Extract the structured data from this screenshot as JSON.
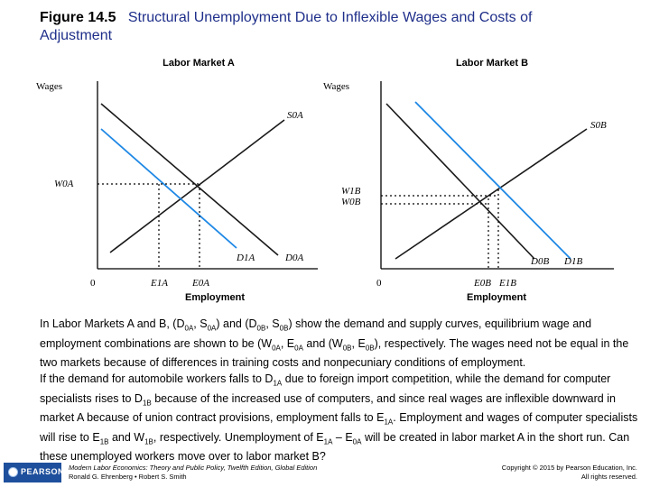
{
  "title": {
    "figure": "Figure 14.5",
    "text_line1": "Structural Unemployment Due to Inflexible Wages and Costs of",
    "text_line2": "Adjustment"
  },
  "graphs": {
    "market_a": {
      "heading": "Labor Market A",
      "y_axis": "Wages",
      "x_axis": "Employment",
      "origin": "0",
      "supply": "S0A",
      "demand0": "D0A",
      "demand1": "D1A",
      "wage": "W0A",
      "emp0": "E0A",
      "emp1": "E1A"
    },
    "market_b": {
      "heading": "Labor Market B",
      "y_axis": "Wages",
      "x_axis": "Employment",
      "origin": "0",
      "supply": "S0B",
      "demand0": "D0B",
      "demand1": "D1B",
      "wage1": "W1B",
      "wage0": "W0B",
      "emp0": "E0B",
      "emp1": "E1B"
    },
    "colors": {
      "original_curves": "#1a1a1a",
      "shifted_curves": "#1e88e5"
    }
  },
  "body": {
    "p1": {
      "s1": "In Labor Markets A and B, (D",
      "sub1": "0A",
      "s2": ", S",
      "sub2": "0A",
      "s3": ") and (D",
      "sub3": "0B",
      "s4": ", S",
      "sub4": "0B",
      "s5": ") show the demand and supply curves, equilibrium wage and employment combinations are shown to be (W",
      "sub5": "0A",
      "s6": ", E",
      "sub6": "0A",
      "s7": " and (W",
      "sub7": "0B",
      "s8": ", E",
      "sub8": "0B",
      "s9": "), respectively. The wages need not be equal in the two markets because of differences in training costs and nonpecuniary conditions of employment."
    },
    "p2": {
      "s1": "If the demand for automobile workers falls to D",
      "sub1": "1A",
      "s2": " due to foreign import competition, while the demand for computer specialists rises to D",
      "sub2": "1B",
      "s3": " because of the increased use of computers, and since real wages are inflexible downward in market A because of union contract provisions, employment falls to E",
      "sub3": "1A",
      "s4": ". Employment and wages of computer specialists will rise to E",
      "sub4": "1B",
      "s5": " and W",
      "sub5": "1B",
      "s6": ", respectively. Unemployment of E",
      "sub6": "1A",
      "s7": " – E",
      "sub7": "0A",
      "s8": " will be created in labor market A in the short run. Can these unemployed workers move over to labor market B?"
    }
  },
  "footer": {
    "logo_text": "PEARSON",
    "book": "Modern Labor Economics: Theory and Public Policy, Twelfth Edition, Global Edition",
    "authors": "Ronald G. Ehrenberg • Robert S. Smith",
    "copyright": "Copyright © 2015 by Pearson Education, Inc.",
    "rights": "All rights reserved."
  }
}
